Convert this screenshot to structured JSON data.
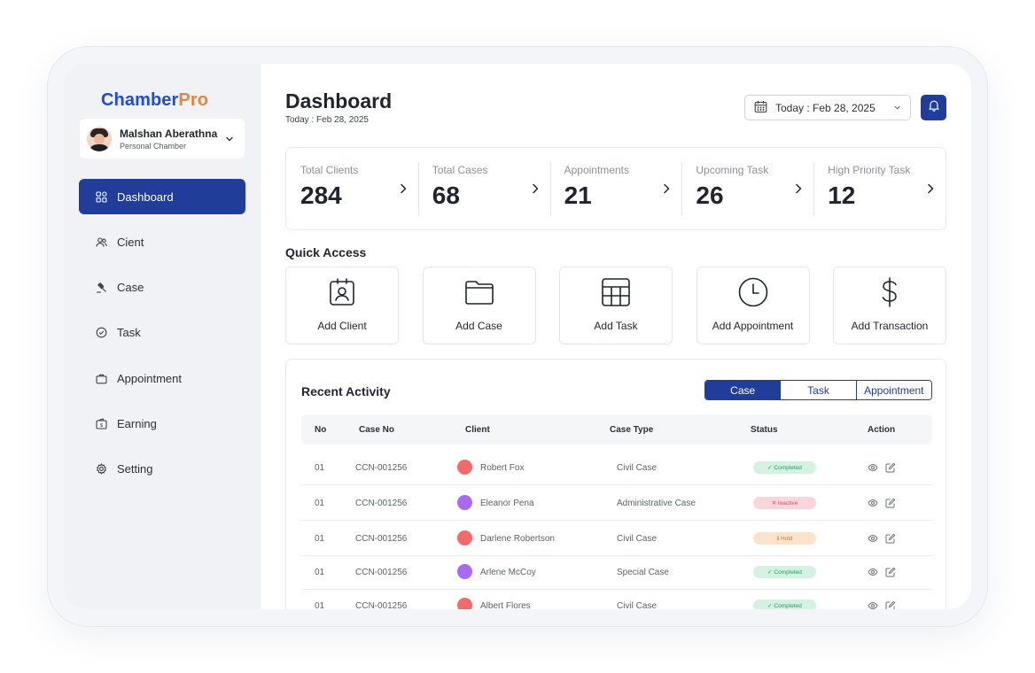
{
  "brand": {
    "part1": "Chamber",
    "part2": "Pro"
  },
  "profile": {
    "name": "Malshan Aberathna",
    "subtitle": "Personal Chamber"
  },
  "nav": [
    {
      "label": "Dashboard",
      "icon": "grid-icon",
      "active": true
    },
    {
      "label": "Cient",
      "icon": "users-icon",
      "active": false
    },
    {
      "label": "Case",
      "icon": "gavel-icon",
      "active": false
    },
    {
      "label": "Task",
      "icon": "task-icon",
      "active": false
    },
    {
      "label": "Appointment",
      "icon": "briefcase-icon",
      "active": false
    },
    {
      "label": "Earning",
      "icon": "wallet-icon",
      "active": false
    },
    {
      "label": "Setting",
      "icon": "gear-icon",
      "active": false
    }
  ],
  "header": {
    "title": "Dashboard",
    "subtitle": "Today : Feb 28, 2025",
    "date_value": "Today : Feb 28, 2025"
  },
  "stats": [
    {
      "label": "Total Clients",
      "value": "284"
    },
    {
      "label": "Total Cases",
      "value": "68"
    },
    {
      "label": "Appointments",
      "value": "21"
    },
    {
      "label": "Upcoming Task",
      "value": "26"
    },
    {
      "label": "High Priority Task",
      "value": "12"
    }
  ],
  "quick_access": {
    "title": "Quick Access",
    "items": [
      {
        "label": "Add Client",
        "icon": "contact-icon"
      },
      {
        "label": "Add Case",
        "icon": "folder-icon"
      },
      {
        "label": "Add Task",
        "icon": "table-icon"
      },
      {
        "label": "Add Appointment",
        "icon": "clock-icon"
      },
      {
        "label": "Add Transaction",
        "icon": "dollar-icon"
      }
    ]
  },
  "activity": {
    "title": "Recent Activity",
    "tabs": [
      "Case",
      "Task",
      "Appointment"
    ],
    "active_tab": "Case",
    "columns": [
      "No",
      "Case No",
      "Client",
      "Case Type",
      "Status",
      "Action"
    ],
    "rows": [
      {
        "no": "01",
        "case_no": "CCN-001256",
        "client": "Robert Fox",
        "case_type": "Civil Case",
        "status": "Completed",
        "status_mark": "✓",
        "status_kind": "completed",
        "avatar_color": "red"
      },
      {
        "no": "01",
        "case_no": "CCN-001256",
        "client": "Eleanor Pena",
        "case_type": "Administrative Case",
        "status": "Inactive",
        "status_mark": "✕",
        "status_kind": "inactive",
        "avatar_color": "purple"
      },
      {
        "no": "01",
        "case_no": "CCN-001256",
        "client": "Darlene Robertson",
        "case_type": "Civil Case",
        "status": "Hold",
        "status_mark": "ℹ",
        "status_kind": "hold",
        "avatar_color": "red"
      },
      {
        "no": "01",
        "case_no": "CCN-001256",
        "client": "Arlene McCoy",
        "case_type": "Special Case",
        "status": "Completed",
        "status_mark": "✓",
        "status_kind": "completed",
        "avatar_color": "purple"
      },
      {
        "no": "01",
        "case_no": "CCN-001256",
        "client": "Albert Flores",
        "case_type": "Civil Case",
        "status": "Completed",
        "status_mark": "✓",
        "status_kind": "completed",
        "avatar_color": "red"
      }
    ]
  },
  "colors": {
    "primary": "#1f3d99",
    "brand_blue": "#1f4bd6",
    "brand_orange": "#e8843f"
  }
}
